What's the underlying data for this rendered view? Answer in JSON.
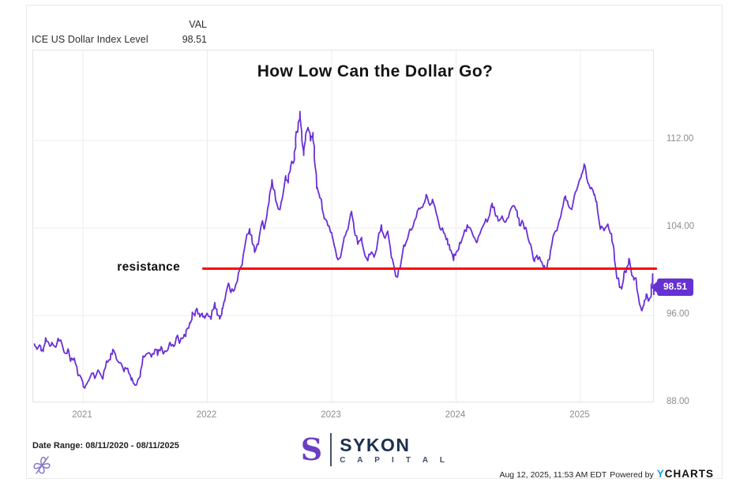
{
  "header": {
    "series_name": "ICE US Dollar Index Level",
    "val_column_label": "VAL",
    "val": "98.51"
  },
  "title": "How Low Can the Dollar Go?",
  "annotations": {
    "resistance_label": "resistance",
    "resistance_level": 100.2,
    "resistance_start_year": 2021.965,
    "resistance_end_year": 2025.62,
    "last_value_badge": "98.51"
  },
  "footer": {
    "date_range": "Date Range: 08/11/2020 - 08/11/2025",
    "logo": {
      "mark": "S",
      "name": "SYKON",
      "subtitle": "C A P I T A L"
    },
    "attribution": {
      "timestamp": "Aug 12, 2025, 11:53 AM EDT",
      "powered_by": "Powered by",
      "brand_y": "Y",
      "brand_rest": "CHARTS"
    }
  },
  "colors": {
    "line": "#6a2fd6",
    "badge": "#6531d3",
    "resistance": "#fb0505",
    "grid": "#ececec",
    "axis_text": "#8c8c8c"
  },
  "chart_data": {
    "type": "line",
    "title": "How Low Can the Dollar Go?",
    "series_name": "ICE US Dollar Index Level",
    "xlabel": "",
    "ylabel": "",
    "x_ticks": [
      2021,
      2022,
      2023,
      2024,
      2025
    ],
    "x_tick_labels": [
      "2021",
      "2022",
      "2023",
      "2024",
      "2025"
    ],
    "y_ticks": [
      88,
      96,
      104,
      112
    ],
    "y_tick_labels": [
      "88.00",
      "96.00",
      "104.00",
      "112.00"
    ],
    "x_range_years": [
      2020.6,
      2025.61
    ],
    "y_range": [
      88,
      120.2
    ],
    "grid": true,
    "legend_position": "none",
    "last_value": 98.51,
    "series": [
      {
        "name": "ICE US Dollar Index Level",
        "points": [
          [
            2020.61,
            93.4
          ],
          [
            2020.63,
            92.9
          ],
          [
            2020.66,
            93.2
          ],
          [
            2020.68,
            92.7
          ],
          [
            2020.7,
            93.9
          ],
          [
            2020.73,
            93.3
          ],
          [
            2020.75,
            93.6
          ],
          [
            2020.78,
            93.1
          ],
          [
            2020.8,
            93.9
          ],
          [
            2020.83,
            93.4
          ],
          [
            2020.85,
            92.6
          ],
          [
            2020.88,
            92.9
          ],
          [
            2020.9,
            91.9
          ],
          [
            2020.93,
            92.1
          ],
          [
            2020.96,
            90.6
          ],
          [
            2021.0,
            89.9
          ],
          [
            2021.02,
            89.5
          ],
          [
            2021.05,
            90.2
          ],
          [
            2021.08,
            90.8
          ],
          [
            2021.1,
            90.4
          ],
          [
            2021.13,
            90.9
          ],
          [
            2021.16,
            90.3
          ],
          [
            2021.19,
            91.8
          ],
          [
            2021.22,
            92.0
          ],
          [
            2021.24,
            93.0
          ],
          [
            2021.27,
            92.1
          ],
          [
            2021.3,
            91.6
          ],
          [
            2021.33,
            90.9
          ],
          [
            2021.36,
            91.2
          ],
          [
            2021.39,
            90.2
          ],
          [
            2021.41,
            89.8
          ],
          [
            2021.44,
            90.0
          ],
          [
            2021.46,
            90.5
          ],
          [
            2021.48,
            91.9
          ],
          [
            2021.5,
            92.3
          ],
          [
            2021.53,
            92.7
          ],
          [
            2021.55,
            92.1
          ],
          [
            2021.58,
            93.0
          ],
          [
            2021.6,
            92.4
          ],
          [
            2021.63,
            93.1
          ],
          [
            2021.65,
            92.6
          ],
          [
            2021.68,
            92.8
          ],
          [
            2021.7,
            93.6
          ],
          [
            2021.73,
            93.2
          ],
          [
            2021.76,
            94.1
          ],
          [
            2021.78,
            93.6
          ],
          [
            2021.81,
            94.0
          ],
          [
            2021.83,
            94.6
          ],
          [
            2021.86,
            95.3
          ],
          [
            2021.88,
            96.2
          ],
          [
            2021.9,
            95.9
          ],
          [
            2021.92,
            96.6
          ],
          [
            2021.94,
            95.9
          ],
          [
            2021.96,
            96.3
          ],
          [
            2021.98,
            95.8
          ],
          [
            2022.0,
            96.2
          ],
          [
            2022.03,
            95.7
          ],
          [
            2022.06,
            97.2
          ],
          [
            2022.08,
            96.1
          ],
          [
            2022.1,
            95.8
          ],
          [
            2022.12,
            96.6
          ],
          [
            2022.14,
            97.4
          ],
          [
            2022.17,
            98.9
          ],
          [
            2022.19,
            98.2
          ],
          [
            2022.22,
            98.5
          ],
          [
            2022.25,
            99.8
          ],
          [
            2022.28,
            100.6
          ],
          [
            2022.31,
            102.9
          ],
          [
            2022.34,
            104.0
          ],
          [
            2022.36,
            102.9
          ],
          [
            2022.38,
            101.7
          ],
          [
            2022.41,
            102.6
          ],
          [
            2022.44,
            104.6
          ],
          [
            2022.46,
            103.9
          ],
          [
            2022.48,
            105.1
          ],
          [
            2022.5,
            107.0
          ],
          [
            2022.52,
            108.5
          ],
          [
            2022.55,
            106.5
          ],
          [
            2022.58,
            105.6
          ],
          [
            2022.6,
            106.6
          ],
          [
            2022.63,
            108.8
          ],
          [
            2022.65,
            108.2
          ],
          [
            2022.67,
            109.6
          ],
          [
            2022.7,
            110.2
          ],
          [
            2022.71,
            112.2
          ],
          [
            2022.73,
            113.2
          ],
          [
            2022.745,
            114.7
          ],
          [
            2022.76,
            112.3
          ],
          [
            2022.775,
            110.7
          ],
          [
            2022.79,
            112.4
          ],
          [
            2022.81,
            113.2
          ],
          [
            2022.83,
            112.0
          ],
          [
            2022.85,
            112.8
          ],
          [
            2022.86,
            110.6
          ],
          [
            2022.88,
            107.7
          ],
          [
            2022.9,
            107.0
          ],
          [
            2022.92,
            106.2
          ],
          [
            2022.94,
            104.9
          ],
          [
            2022.97,
            104.3
          ],
          [
            2023.0,
            103.6
          ],
          [
            2023.02,
            102.3
          ],
          [
            2023.05,
            101.2
          ],
          [
            2023.08,
            101.8
          ],
          [
            2023.1,
            103.2
          ],
          [
            2023.13,
            103.8
          ],
          [
            2023.16,
            105.5
          ],
          [
            2023.18,
            103.9
          ],
          [
            2023.21,
            102.6
          ],
          [
            2023.24,
            103.1
          ],
          [
            2023.26,
            101.8
          ],
          [
            2023.29,
            101.1
          ],
          [
            2023.32,
            101.9
          ],
          [
            2023.34,
            101.4
          ],
          [
            2023.37,
            102.8
          ],
          [
            2023.4,
            104.2
          ],
          [
            2023.42,
            103.2
          ],
          [
            2023.45,
            103.7
          ],
          [
            2023.48,
            101.3
          ],
          [
            2023.51,
            100.0
          ],
          [
            2023.53,
            99.6
          ],
          [
            2023.56,
            101.1
          ],
          [
            2023.58,
            102.4
          ],
          [
            2023.61,
            103.1
          ],
          [
            2023.63,
            103.9
          ],
          [
            2023.66,
            104.5
          ],
          [
            2023.68,
            105.1
          ],
          [
            2023.71,
            105.8
          ],
          [
            2023.74,
            106.3
          ],
          [
            2023.76,
            107.0
          ],
          [
            2023.79,
            106.0
          ],
          [
            2023.81,
            106.6
          ],
          [
            2023.84,
            105.4
          ],
          [
            2023.87,
            104.0
          ],
          [
            2023.9,
            103.6
          ],
          [
            2023.93,
            103.0
          ],
          [
            2023.95,
            102.1
          ],
          [
            2023.98,
            101.1
          ],
          [
            2024.0,
            101.8
          ],
          [
            2024.03,
            102.6
          ],
          [
            2024.06,
            103.3
          ],
          [
            2024.09,
            104.2
          ],
          [
            2024.12,
            103.9
          ],
          [
            2024.15,
            103.2
          ],
          [
            2024.17,
            102.8
          ],
          [
            2024.2,
            103.8
          ],
          [
            2024.23,
            104.4
          ],
          [
            2024.26,
            104.9
          ],
          [
            2024.29,
            106.3
          ],
          [
            2024.31,
            105.6
          ],
          [
            2024.34,
            104.7
          ],
          [
            2024.37,
            105.2
          ],
          [
            2024.4,
            104.6
          ],
          [
            2024.43,
            105.3
          ],
          [
            2024.46,
            106.1
          ],
          [
            2024.49,
            105.5
          ],
          [
            2024.51,
            104.3
          ],
          [
            2024.54,
            104.5
          ],
          [
            2024.57,
            103.5
          ],
          [
            2024.6,
            102.6
          ],
          [
            2024.63,
            100.9
          ],
          [
            2024.65,
            101.5
          ],
          [
            2024.68,
            100.9
          ],
          [
            2024.71,
            100.6
          ],
          [
            2024.73,
            100.2
          ],
          [
            2024.76,
            102.0
          ],
          [
            2024.79,
            103.5
          ],
          [
            2024.82,
            104.2
          ],
          [
            2024.85,
            105.5
          ],
          [
            2024.88,
            107.0
          ],
          [
            2024.9,
            106.1
          ],
          [
            2024.93,
            105.8
          ],
          [
            2024.96,
            107.2
          ],
          [
            2024.99,
            108.3
          ],
          [
            2025.01,
            108.9
          ],
          [
            2025.03,
            109.9
          ],
          [
            2025.06,
            108.2
          ],
          [
            2025.08,
            107.7
          ],
          [
            2025.11,
            107.1
          ],
          [
            2025.13,
            106.5
          ],
          [
            2025.16,
            104.0
          ],
          [
            2025.19,
            103.7
          ],
          [
            2025.22,
            104.3
          ],
          [
            2025.25,
            103.5
          ],
          [
            2025.27,
            102.0
          ],
          [
            2025.29,
            99.6
          ],
          [
            2025.31,
            99.0
          ],
          [
            2025.33,
            98.4
          ],
          [
            2025.35,
            99.8
          ],
          [
            2025.37,
            100.1
          ],
          [
            2025.39,
            101.2
          ],
          [
            2025.41,
            100.0
          ],
          [
            2025.43,
            99.3
          ],
          [
            2025.45,
            99.1
          ],
          [
            2025.47,
            97.4
          ],
          [
            2025.49,
            96.6
          ],
          [
            2025.51,
            97.0
          ],
          [
            2025.53,
            97.9
          ],
          [
            2025.55,
            97.4
          ],
          [
            2025.57,
            98.0
          ],
          [
            2025.58,
            99.8
          ],
          [
            2025.59,
            97.9
          ],
          [
            2025.6,
            98.51
          ]
        ]
      }
    ]
  }
}
